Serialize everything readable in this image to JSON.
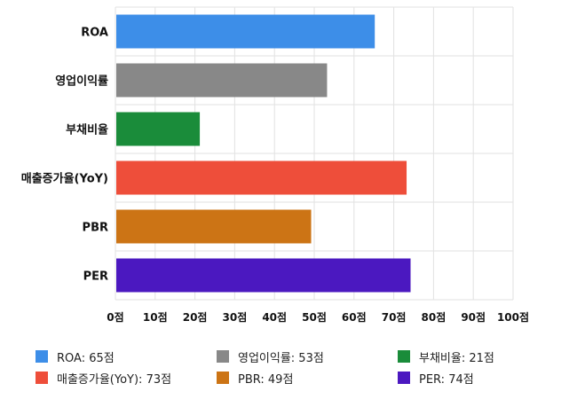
{
  "chart_data": {
    "type": "bar",
    "orientation": "horizontal",
    "categories": [
      "ROA",
      "영업이익률",
      "부채비율",
      "매출증가율(YoY)",
      "PBR",
      "PER"
    ],
    "values": [
      65,
      53,
      21,
      73,
      49,
      74
    ],
    "colors": [
      "#3d8ee8",
      "#888888",
      "#1a8c3a",
      "#ee4e3a",
      "#cc7415",
      "#4b18c0"
    ],
    "xlim": [
      0,
      100
    ],
    "x_ticks": [
      0,
      10,
      20,
      30,
      40,
      50,
      60,
      70,
      80,
      90,
      100
    ],
    "tick_unit": "점",
    "grid": true,
    "title": "",
    "xlabel": "",
    "ylabel": "",
    "legend_position": "bottom"
  },
  "legend": [
    {
      "label": "ROA: 65점",
      "color": "#3d8ee8"
    },
    {
      "label": "영업이익률: 53점",
      "color": "#888888"
    },
    {
      "label": "부채비율: 21점",
      "color": "#1a8c3a"
    },
    {
      "label": "매출증가율(YoY): 73점",
      "color": "#ee4e3a"
    },
    {
      "label": "PBR: 49점",
      "color": "#cc7415"
    },
    {
      "label": "PER: 74점",
      "color": "#4b18c0"
    }
  ]
}
